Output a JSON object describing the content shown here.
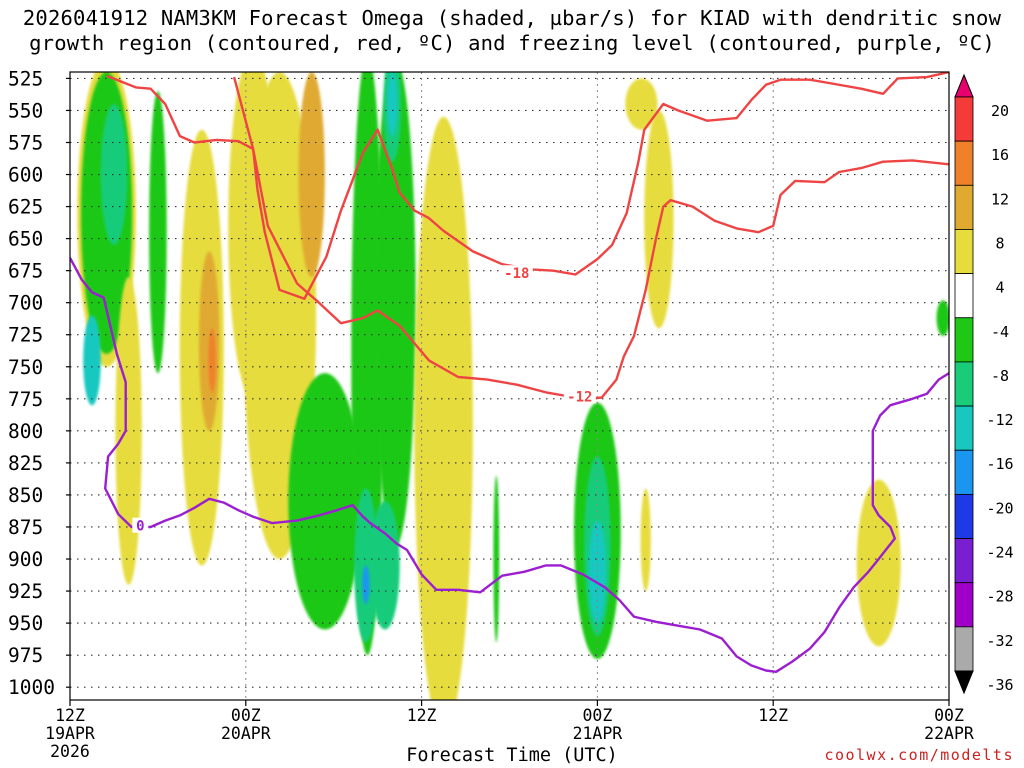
{
  "title_line1": "2026041912 NAM3KM Forecast Omega (shaded, µbar/s) for KIAD with dendritic snow",
  "title_line2": "growth region (contoured, red, ºC) and freezing level (contoured, purple, ºC)",
  "credit": "coolwx.com/modelts",
  "chart_data": {
    "type": "heatmap",
    "title": "2026041912 NAM3KM Forecast Omega (shaded, µbar/s) for KIAD with dendritic snow growth region (contoured, red, ºC) and freezing level (contoured, purple, ºC)",
    "xlabel": "Forecast Time (UTC)",
    "x_range_hours": [
      0,
      60
    ],
    "x_ticks": [
      {
        "hour": 0,
        "lines": [
          "12Z",
          "19APR",
          "2026"
        ]
      },
      {
        "hour": 12,
        "lines": [
          "00Z",
          "20APR"
        ]
      },
      {
        "hour": 24,
        "lines": [
          "12Z"
        ]
      },
      {
        "hour": 36,
        "lines": [
          "00Z",
          "21APR"
        ]
      },
      {
        "hour": 48,
        "lines": [
          "12Z"
        ]
      },
      {
        "hour": 60,
        "lines": [
          "00Z",
          "22APR"
        ]
      }
    ],
    "ylabel": "",
    "y_ticks": [
      525,
      550,
      575,
      600,
      625,
      650,
      675,
      700,
      725,
      750,
      775,
      800,
      825,
      850,
      875,
      900,
      925,
      950,
      975,
      1000
    ],
    "y_range_hpa": [
      520,
      1010
    ],
    "grid": true,
    "colorbar": {
      "labels": [
        "20",
        "16",
        "12",
        "8",
        "4",
        "-4",
        "-8",
        "-12",
        "-16",
        "-20",
        "-24",
        "-28",
        "-32",
        "-36"
      ],
      "bands": [
        {
          "from": 20,
          "to": 24,
          "color": "#e8006e"
        },
        {
          "from": 16,
          "to": 20,
          "color": "#f53a3a"
        },
        {
          "from": 12,
          "to": 16,
          "color": "#f0802a"
        },
        {
          "from": 8,
          "to": 12,
          "color": "#e0aa30"
        },
        {
          "from": 4,
          "to": 8,
          "color": "#e6dc3c"
        },
        {
          "from": -4,
          "to": 4,
          "color": "#ffffff"
        },
        {
          "from": -8,
          "to": -4,
          "color": "#1ec814"
        },
        {
          "from": -12,
          "to": -8,
          "color": "#18cc7a"
        },
        {
          "from": -16,
          "to": -12,
          "color": "#18c8c0"
        },
        {
          "from": -20,
          "to": -16,
          "color": "#1a96f0"
        },
        {
          "from": -24,
          "to": -20,
          "color": "#1e3ae6"
        },
        {
          "from": -28,
          "to": -24,
          "color": "#7a1ed2"
        },
        {
          "from": -32,
          "to": -28,
          "color": "#a000c8"
        },
        {
          "from": -36,
          "to": -32,
          "color": "#aaaaaa"
        },
        {
          "from": -40,
          "to": -36,
          "color": "#000000"
        }
      ]
    },
    "omega_regions": [
      {
        "value": 6,
        "center": [
          2.5,
          630
        ],
        "width_h": 4,
        "height_hpa": 240
      },
      {
        "value": -6,
        "center": [
          2.5,
          630
        ],
        "width_h": 3.5,
        "height_hpa": 220
      },
      {
        "value": -10,
        "center": [
          3,
          600
        ],
        "width_h": 1.8,
        "height_hpa": 110
      },
      {
        "value": -14,
        "center": [
          1.5,
          745
        ],
        "width_h": 1.2,
        "height_hpa": 70
      },
      {
        "value": 6,
        "center": [
          4,
          800
        ],
        "width_h": 1.8,
        "height_hpa": 240
      },
      {
        "value": -6,
        "center": [
          6,
          645
        ],
        "width_h": 1.2,
        "height_hpa": 220
      },
      {
        "value": 6,
        "center": [
          9,
          735
        ],
        "width_h": 3,
        "height_hpa": 340
      },
      {
        "value": 10,
        "center": [
          9.5,
          730
        ],
        "width_h": 1.4,
        "height_hpa": 140
      },
      {
        "value": 14,
        "center": [
          9.7,
          745
        ],
        "width_h": 0.5,
        "height_hpa": 50
      },
      {
        "value": 6,
        "center": [
          12.5,
          640
        ],
        "width_h": 3.4,
        "height_hpa": 270
      },
      {
        "value": 10,
        "center": [
          12.8,
          710
        ],
        "width_h": 1.2,
        "height_hpa": 160
      },
      {
        "value": 6,
        "center": [
          14.3,
          710
        ],
        "width_h": 5,
        "height_hpa": 380
      },
      {
        "value": 10,
        "center": [
          16.5,
          600
        ],
        "width_h": 1.8,
        "height_hpa": 160
      },
      {
        "value": -6,
        "center": [
          17.4,
          855
        ],
        "width_h": 5,
        "height_hpa": 200
      },
      {
        "value": -6,
        "center": [
          20.3,
          740
        ],
        "width_h": 2.2,
        "height_hpa": 470
      },
      {
        "value": -10,
        "center": [
          20.2,
          905
        ],
        "width_h": 1.6,
        "height_hpa": 120
      },
      {
        "value": -6,
        "center": [
          22.2,
          700
        ],
        "width_h": 2.8,
        "height_hpa": 380
      },
      {
        "value": -10,
        "center": [
          22,
          545
        ],
        "width_h": 1.2,
        "height_hpa": 90
      },
      {
        "value": -14,
        "center": [
          22,
          545
        ],
        "width_h": 0.7,
        "height_hpa": 50
      },
      {
        "value": -10,
        "center": [
          21.5,
          905
        ],
        "width_h": 2,
        "height_hpa": 100
      },
      {
        "value": -18,
        "center": [
          20.2,
          920
        ],
        "width_h": 0.5,
        "height_hpa": 30
      },
      {
        "value": 6,
        "center": [
          25.5,
          795
        ],
        "width_h": 4,
        "height_hpa": 480
      },
      {
        "value": -6,
        "center": [
          36,
          878
        ],
        "width_h": 3.2,
        "height_hpa": 200
      },
      {
        "value": -10,
        "center": [
          36,
          890
        ],
        "width_h": 1.8,
        "height_hpa": 140
      },
      {
        "value": -14,
        "center": [
          36,
          910
        ],
        "width_h": 1.2,
        "height_hpa": 80
      },
      {
        "value": -6,
        "center": [
          29.1,
          900
        ],
        "width_h": 0.4,
        "height_hpa": 130
      },
      {
        "value": 6,
        "center": [
          39,
          545
        ],
        "width_h": 2.2,
        "height_hpa": 40
      },
      {
        "value": 6,
        "center": [
          40.2,
          635
        ],
        "width_h": 2,
        "height_hpa": 170
      },
      {
        "value": 6,
        "center": [
          39.3,
          885
        ],
        "width_h": 0.7,
        "height_hpa": 80
      },
      {
        "value": 6,
        "center": [
          55.2,
          903
        ],
        "width_h": 3,
        "height_hpa": 130
      },
      {
        "value": -6,
        "center": [
          59.6,
          712
        ],
        "width_h": 0.9,
        "height_hpa": 28
      }
    ],
    "ground_hpa": 1010,
    "contours": [
      {
        "label": "-18",
        "color": "#ef4444",
        "label_at": [
          30.5,
          677
        ],
        "points": [
          [
            2.5,
            523
          ],
          [
            4.5,
            532
          ],
          [
            5.5,
            533
          ],
          [
            6.5,
            545
          ],
          [
            7.5,
            570
          ],
          [
            8.5,
            575
          ],
          [
            10,
            573
          ],
          [
            11.5,
            574
          ],
          [
            12.5,
            580
          ],
          [
            12.8,
            612
          ],
          [
            13.3,
            645
          ],
          [
            14.3,
            690
          ],
          [
            16,
            697
          ],
          [
            17.5,
            664
          ],
          [
            18.5,
            628
          ],
          [
            20,
            583
          ],
          [
            21,
            565
          ],
          [
            22,
            596
          ],
          [
            22.5,
            614
          ],
          [
            23.5,
            628
          ],
          [
            24.5,
            634
          ],
          [
            25.5,
            644
          ],
          [
            27.5,
            660
          ],
          [
            29.5,
            670
          ],
          [
            31.5,
            674
          ],
          [
            33,
            675
          ],
          [
            34.5,
            678
          ],
          [
            36,
            666
          ],
          [
            37,
            655
          ],
          [
            38,
            630
          ],
          [
            38.8,
            590
          ],
          [
            39.2,
            565
          ],
          [
            40.5,
            545
          ],
          [
            41.5,
            550
          ],
          [
            43.5,
            558
          ],
          [
            45.5,
            556
          ],
          [
            46.5,
            542
          ],
          [
            47.5,
            530
          ],
          [
            48.5,
            526
          ],
          [
            50.5,
            526
          ],
          [
            52,
            529
          ],
          [
            54,
            533
          ],
          [
            55.5,
            537
          ],
          [
            56.5,
            525
          ],
          [
            58.5,
            524
          ],
          [
            60,
            520
          ]
        ]
      },
      {
        "label": "-12",
        "color": "#ef4444",
        "label_at": [
          34.8,
          773
        ],
        "points": [
          [
            11.2,
            524
          ],
          [
            12.5,
            580
          ],
          [
            13.5,
            640
          ],
          [
            15.5,
            685
          ],
          [
            17,
            700
          ],
          [
            18.5,
            716
          ],
          [
            20,
            712
          ],
          [
            21,
            706
          ],
          [
            22.5,
            718
          ],
          [
            24.5,
            745
          ],
          [
            26.5,
            758
          ],
          [
            28.5,
            760
          ],
          [
            30.5,
            764
          ],
          [
            32.5,
            770
          ],
          [
            34.5,
            774
          ],
          [
            35.5,
            775
          ],
          [
            36.3,
            774
          ],
          [
            37.3,
            760
          ],
          [
            37.8,
            742
          ],
          [
            38.5,
            726
          ],
          [
            39.3,
            690
          ],
          [
            40,
            650
          ],
          [
            40.5,
            625
          ],
          [
            41,
            620
          ],
          [
            42.5,
            625
          ],
          [
            44,
            636
          ],
          [
            45.5,
            642
          ],
          [
            47,
            645
          ],
          [
            48,
            640
          ],
          [
            48.5,
            616
          ],
          [
            49.5,
            605
          ],
          [
            51.5,
            606
          ],
          [
            52.5,
            598
          ],
          [
            54,
            595
          ],
          [
            55.5,
            590
          ],
          [
            57.5,
            589
          ],
          [
            60,
            592
          ]
        ]
      },
      {
        "label": "0",
        "color": "#9b1fd0",
        "label_at": [
          4.8,
          874
        ],
        "points": [
          [
            0,
            665
          ],
          [
            0.8,
            682
          ],
          [
            1.5,
            692
          ],
          [
            2.3,
            696
          ],
          [
            3.2,
            740
          ],
          [
            3.8,
            762
          ],
          [
            3.8,
            800
          ],
          [
            3.3,
            810
          ],
          [
            2.6,
            820
          ],
          [
            2.4,
            845
          ],
          [
            3.3,
            865
          ],
          [
            4.2,
            875
          ],
          [
            5.5,
            875
          ],
          [
            6.5,
            870
          ],
          [
            7.5,
            866
          ],
          [
            8.5,
            860
          ],
          [
            9.5,
            853
          ],
          [
            10.5,
            856
          ],
          [
            11.5,
            862
          ],
          [
            12.5,
            867
          ],
          [
            13.8,
            872
          ],
          [
            15.5,
            870
          ],
          [
            17,
            866
          ],
          [
            18.2,
            862
          ],
          [
            19.3,
            858
          ],
          [
            20,
            867
          ],
          [
            20.5,
            872
          ],
          [
            21.5,
            880
          ],
          [
            22.3,
            888
          ],
          [
            23,
            893
          ],
          [
            24,
            912
          ],
          [
            25,
            924
          ],
          [
            26.5,
            924
          ],
          [
            28,
            926
          ],
          [
            29.5,
            913
          ],
          [
            31,
            910
          ],
          [
            32.5,
            905
          ],
          [
            33.5,
            905
          ],
          [
            35,
            912
          ],
          [
            36.5,
            922
          ],
          [
            37.5,
            932
          ],
          [
            38.5,
            945
          ],
          [
            40,
            949
          ],
          [
            41.5,
            952
          ],
          [
            43,
            955
          ],
          [
            44.5,
            962
          ],
          [
            45.5,
            976
          ],
          [
            46.5,
            983
          ],
          [
            47.5,
            987
          ],
          [
            48.2,
            988
          ],
          [
            49.3,
            980
          ],
          [
            50.5,
            970
          ],
          [
            51.5,
            957
          ],
          [
            52.5,
            938
          ],
          [
            53.5,
            922
          ],
          [
            54.5,
            910
          ],
          [
            55.2,
            900
          ],
          [
            56.3,
            884
          ],
          [
            56,
            875
          ],
          [
            55.2,
            866
          ],
          [
            54.8,
            858
          ],
          [
            54.8,
            800
          ],
          [
            55.3,
            788
          ],
          [
            56,
            780
          ],
          [
            57.5,
            775
          ],
          [
            58.5,
            771
          ],
          [
            59.3,
            760
          ],
          [
            60,
            755
          ]
        ]
      }
    ]
  }
}
